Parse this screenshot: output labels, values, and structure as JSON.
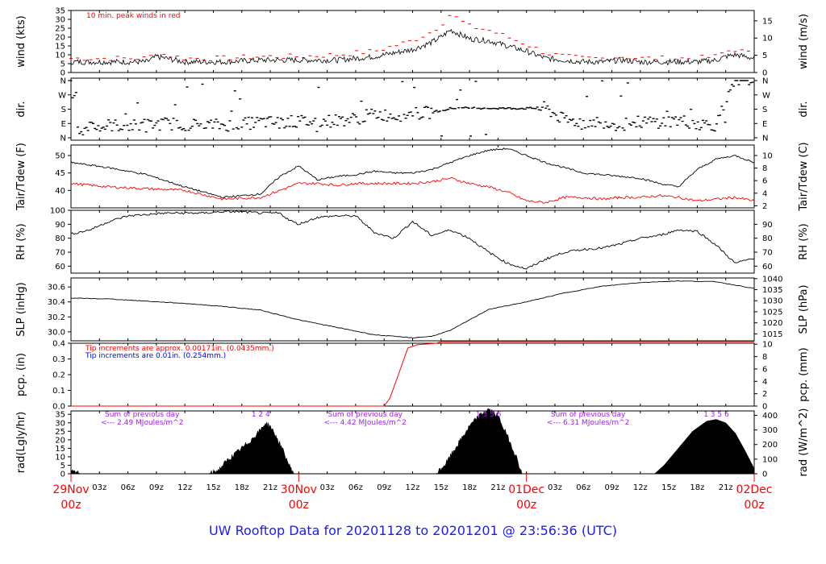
{
  "footer_title": "UW Rooftop Data for 20201128  to  20201201 @ 23:56:36  (UTC)",
  "colors": {
    "primary": "#000000",
    "peak": "#ff0000",
    "blue_note": "#0000ff",
    "solar_note": "#a020f0",
    "axis_major": "#ff0000"
  },
  "x_axis": {
    "range_hours": [
      0,
      72
    ],
    "minor_ticks": [
      {
        "h": 3,
        "label": "03z"
      },
      {
        "h": 6,
        "label": "06z"
      },
      {
        "h": 9,
        "label": "09z"
      },
      {
        "h": 12,
        "label": "12z"
      },
      {
        "h": 15,
        "label": "15z"
      },
      {
        "h": 18,
        "label": "18z"
      },
      {
        "h": 21,
        "label": "21z"
      },
      {
        "h": 27,
        "label": "03z"
      },
      {
        "h": 30,
        "label": "06z"
      },
      {
        "h": 33,
        "label": "09z"
      },
      {
        "h": 36,
        "label": "12z"
      },
      {
        "h": 39,
        "label": "15z"
      },
      {
        "h": 42,
        "label": "18z"
      },
      {
        "h": 45,
        "label": "21z"
      },
      {
        "h": 51,
        "label": "03z"
      },
      {
        "h": 54,
        "label": "06z"
      },
      {
        "h": 57,
        "label": "09z"
      },
      {
        "h": 60,
        "label": "12z"
      },
      {
        "h": 63,
        "label": "15z"
      },
      {
        "h": 66,
        "label": "18z"
      },
      {
        "h": 69,
        "label": "21z"
      }
    ],
    "major_ticks": [
      {
        "h": 0,
        "date": "29Nov",
        "time": "00z"
      },
      {
        "h": 24,
        "date": "30Nov",
        "time": "00z"
      },
      {
        "h": 48,
        "date": "01Dec",
        "time": "00z"
      },
      {
        "h": 72,
        "date": "02Dec",
        "time": "00z"
      }
    ]
  },
  "chart_data": [
    {
      "type": "line",
      "id": "wind",
      "ylabel_left": "wind (kts)",
      "ylabel_right": "wind (m/s)",
      "ylim": [
        0,
        35
      ],
      "ticks_left": [
        0,
        5,
        10,
        15,
        20,
        25,
        30,
        35
      ],
      "ticks_right": [
        0,
        5,
        10,
        15
      ],
      "annotation": "10 min. peak winds in red",
      "series": [
        {
          "name": "wind",
          "x": [
            0,
            4,
            8,
            9,
            12,
            16,
            20,
            24,
            28,
            30,
            32,
            34,
            36,
            38,
            39,
            40,
            42,
            44,
            46,
            48,
            50,
            52,
            54,
            56,
            58,
            60,
            62,
            64,
            66,
            68,
            69,
            70,
            72
          ],
          "y": [
            6,
            6,
            6,
            9,
            6,
            6,
            7,
            7,
            7,
            8,
            9,
            11,
            13,
            17,
            20,
            24,
            19,
            18,
            15,
            12,
            8,
            7,
            6,
            6,
            7,
            6,
            6,
            6,
            6,
            7,
            9,
            10,
            8
          ]
        },
        {
          "name": "peak",
          "x": [
            0,
            4,
            8,
            9,
            12,
            16,
            20,
            24,
            28,
            30,
            32,
            34,
            36,
            38,
            39,
            40,
            42,
            44,
            46,
            48,
            50,
            52,
            54,
            56,
            58,
            60,
            62,
            64,
            66,
            68,
            69,
            70,
            72
          ],
          "y": [
            8,
            8,
            8,
            11,
            8,
            8,
            9,
            9,
            10,
            11,
            12,
            15,
            18,
            23,
            27,
            33,
            26,
            24,
            20,
            16,
            11,
            9,
            8,
            8,
            9,
            8,
            8,
            8,
            8,
            9,
            12,
            13,
            10
          ]
        }
      ]
    },
    {
      "type": "scatter",
      "id": "dir",
      "ylabel_left": "dir.",
      "ylabel_right": "dir.",
      "categories": [
        "N",
        "E",
        "S",
        "W",
        "N"
      ],
      "series": [
        {
          "name": "dir",
          "x": [
            0,
            1,
            2,
            3,
            4,
            6,
            8,
            10,
            12,
            14,
            16,
            18,
            20,
            22,
            24,
            26,
            28,
            30,
            32,
            34,
            36,
            38,
            40,
            42,
            44,
            46,
            48,
            50,
            52,
            54,
            56,
            58,
            60,
            62,
            64,
            66,
            68,
            70,
            72
          ],
          "y": [
            350,
            10,
            100,
            60,
            80,
            75,
            80,
            90,
            85,
            80,
            80,
            85,
            100,
            95,
            105,
            100,
            110,
            120,
            150,
            140,
            150,
            160,
            185,
            188,
            186,
            185,
            185,
            187,
            110,
            100,
            100,
            80,
            100,
            100,
            110,
            90,
            80,
            350,
            355
          ]
        }
      ]
    },
    {
      "type": "line",
      "id": "temp",
      "ylabel_left": "Tair/Tdew (F)",
      "ylabel_right": "Tair/Tdew (C)",
      "ylim": [
        35,
        53
      ],
      "ticks_left": [
        40,
        45,
        50
      ],
      "ticks_right": [
        2,
        4,
        6,
        8,
        10
      ],
      "series": [
        {
          "name": "Tair",
          "x": [
            0,
            4,
            8,
            12,
            16,
            20,
            22,
            24,
            26,
            28,
            30,
            32,
            34,
            36,
            38,
            40,
            42,
            44,
            46,
            48,
            50,
            52,
            54,
            56,
            58,
            60,
            62,
            64,
            66,
            68,
            70,
            72
          ],
          "y": [
            48,
            46.5,
            44.5,
            41,
            38,
            39,
            44,
            47,
            43,
            44,
            44.5,
            45.5,
            45,
            45,
            46,
            48,
            50,
            51.5,
            52,
            50,
            48,
            46.5,
            45,
            44.5,
            44,
            43.5,
            42,
            41,
            46,
            49,
            50,
            48
          ]
        },
        {
          "name": "Tdew",
          "x": [
            0,
            4,
            8,
            12,
            16,
            20,
            22,
            24,
            26,
            28,
            30,
            32,
            34,
            36,
            38,
            40,
            42,
            44,
            46,
            48,
            50,
            52,
            54,
            56,
            58,
            60,
            62,
            64,
            66,
            68,
            70,
            72
          ],
          "y": [
            42,
            41,
            40.5,
            40,
            37.5,
            38,
            40,
            42,
            42,
            41.5,
            42,
            42,
            42,
            42,
            42.5,
            43.5,
            42,
            41,
            39.5,
            37,
            36.5,
            38,
            38,
            37.5,
            38,
            38,
            38.5,
            38,
            37,
            37.5,
            38,
            37
          ]
        }
      ]
    },
    {
      "type": "line",
      "id": "rh",
      "ylabel_left": "RH (%)",
      "ylabel_right": "RH (%)",
      "ylim": [
        55,
        100
      ],
      "ticks_left": [
        60,
        70,
        80,
        90,
        100
      ],
      "ticks_right": [
        60,
        70,
        80,
        90
      ],
      "series": [
        {
          "name": "RH",
          "x": [
            0,
            2,
            4,
            6,
            8,
            10,
            12,
            14,
            16,
            18,
            20,
            22,
            23,
            24,
            26,
            28,
            30,
            32,
            34,
            36,
            38,
            40,
            42,
            44,
            46,
            48,
            50,
            52,
            54,
            56,
            58,
            60,
            62,
            64,
            66,
            68,
            70,
            72
          ],
          "y": [
            83,
            86,
            92,
            96,
            97,
            98,
            98,
            98,
            99,
            99,
            98,
            98,
            93,
            90,
            95,
            96,
            96,
            84,
            80,
            92,
            82,
            86,
            80,
            70,
            62,
            58,
            65,
            70,
            72,
            73,
            76,
            80,
            82,
            86,
            85,
            75,
            62,
            66
          ]
        }
      ]
    },
    {
      "type": "line",
      "id": "slp",
      "ylabel_left": "SLP (inHg)",
      "ylabel_right": "SLP (hPa)",
      "ylim": [
        29.88,
        30.72
      ],
      "ticks_left": [
        30.0,
        30.2,
        30.4,
        30.6
      ],
      "ticks_right": [
        1015,
        1020,
        1025,
        1030,
        1035,
        1040
      ],
      "series": [
        {
          "name": "SLP",
          "x": [
            0,
            4,
            8,
            12,
            16,
            20,
            24,
            28,
            32,
            36,
            38,
            40,
            44,
            48,
            52,
            56,
            60,
            64,
            68,
            72
          ],
          "y": [
            30.45,
            30.44,
            30.41,
            30.38,
            30.34,
            30.29,
            30.16,
            30.06,
            29.96,
            29.92,
            29.94,
            30.02,
            30.3,
            30.4,
            30.52,
            30.61,
            30.66,
            30.68,
            30.67,
            30.58
          ]
        }
      ]
    },
    {
      "type": "line",
      "id": "pcp",
      "ylabel_left": "pcp. (in)",
      "ylabel_right": "pcp. (mm)",
      "ylim": [
        0,
        0.4
      ],
      "ticks_left": [
        0.0,
        0.1,
        0.2,
        0.3,
        0.4
      ],
      "ticks_right": [
        0,
        2,
        4,
        6,
        8,
        10
      ],
      "note_red": "Tip increments are approx. 0.00171in. (0.0435mm.)",
      "note_blue": "Tip increments are 0.01in. (0.254mm.)",
      "series": [
        {
          "name": "pcp",
          "x": [
            0,
            33,
            33.6,
            34.5,
            35.5,
            36.5,
            38.5,
            39,
            72
          ],
          "y": [
            0,
            0,
            0.05,
            0.2,
            0.37,
            0.39,
            0.4,
            0.41,
            0.41
          ]
        }
      ]
    },
    {
      "type": "area",
      "id": "rad",
      "ylabel_left": "rad(Lgly/hr)",
      "ylabel_right": "rad (W/m^2)",
      "ylim": [
        0,
        37
      ],
      "ticks_left": [
        0,
        5,
        10,
        15,
        20,
        25,
        30,
        35
      ],
      "ticks_right": [
        0,
        100,
        200,
        300,
        400
      ],
      "day_labels": [
        {
          "h": 20,
          "marks": "1   2   4"
        },
        {
          "h": 44,
          "marks": "1   3   5   6"
        },
        {
          "h": 68,
          "marks": "1   3   5   6"
        }
      ],
      "summaries": [
        {
          "h": 7.5,
          "line1": "Sum of previous day",
          "line2": "<--- 2.49 MJoules/m^2"
        },
        {
          "h": 31,
          "line1": "Sum of previous day",
          "line2": "<--- 4.42 MJoules/m^2"
        },
        {
          "h": 54.5,
          "line1": "Sum of previous day",
          "line2": "<--- 6.31 MJoules/m^2"
        }
      ],
      "series": [
        {
          "name": "rad",
          "x": [
            0,
            1,
            14.5,
            15.5,
            16.5,
            18,
            19,
            20,
            20.5,
            21,
            22,
            23,
            23.5,
            38.5,
            39.5,
            40.5,
            42,
            43,
            44,
            45,
            46,
            47,
            47.5,
            61.5,
            62.5,
            64,
            65.5,
            67,
            68,
            69,
            70,
            71,
            72
          ],
          "y": [
            2,
            0,
            0,
            2,
            8,
            15,
            20,
            26,
            30,
            28,
            18,
            5,
            0,
            0,
            6,
            15,
            28,
            34,
            38,
            34,
            22,
            9,
            0,
            0,
            5,
            15,
            25,
            31,
            32,
            30,
            24,
            14,
            3
          ]
        }
      ]
    }
  ]
}
